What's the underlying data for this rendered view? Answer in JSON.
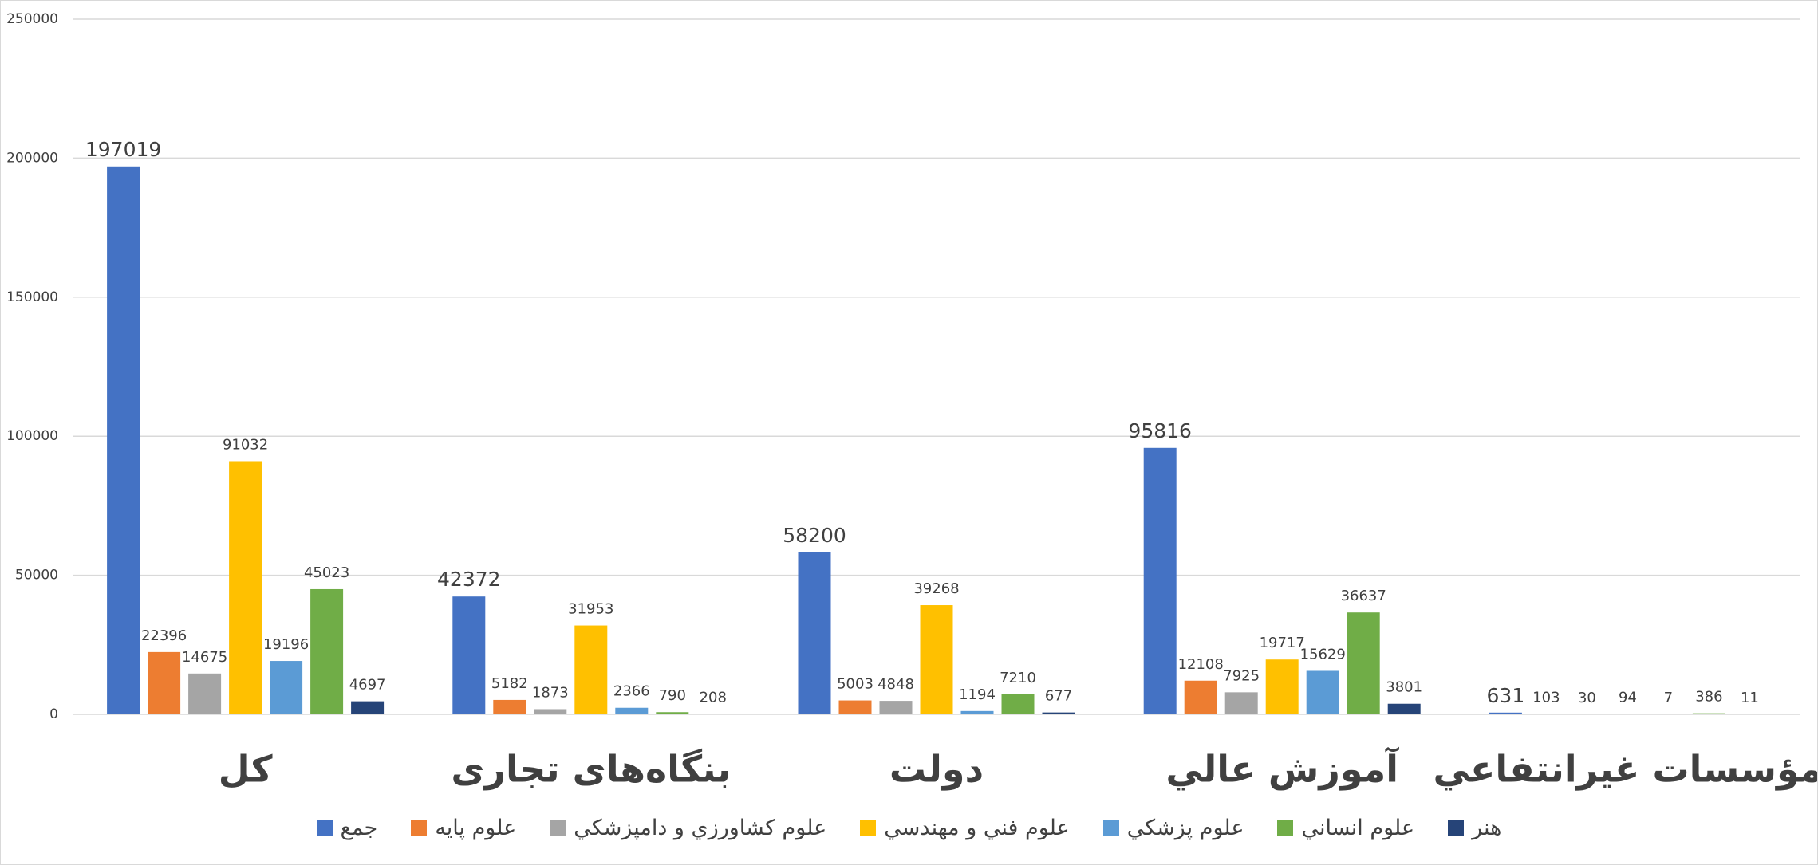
{
  "chart_data": {
    "type": "bar",
    "categories": [
      "كل",
      "بنگاه‌های تجاری",
      "دولت",
      "آموزش عالي",
      "مؤسسات غيرانتفاعي"
    ],
    "series": [
      {
        "name": "جمع",
        "color": "#4472c4",
        "values": [
          197019,
          42372,
          58200,
          95816,
          631
        ]
      },
      {
        "name": "علوم پايه",
        "color": "#ed7d31",
        "values": [
          22396,
          5182,
          5003,
          12108,
          103
        ]
      },
      {
        "name": "علوم كشاورزي و دامپزشكي",
        "color": "#a5a5a5",
        "values": [
          14675,
          1873,
          4848,
          7925,
          30
        ]
      },
      {
        "name": "علوم فني و مهندسي",
        "color": "#ffc000",
        "values": [
          91032,
          31953,
          39268,
          19717,
          94
        ]
      },
      {
        "name": "علوم پزشكي",
        "color": "#5b9bd5",
        "values": [
          19196,
          2366,
          1194,
          15629,
          7
        ]
      },
      {
        "name": "علوم انساني",
        "color": "#70ad47",
        "values": [
          45023,
          790,
          7210,
          36637,
          386
        ]
      },
      {
        "name": "هنر",
        "color": "#264478",
        "values": [
          4697,
          208,
          677,
          3801,
          11
        ]
      }
    ],
    "ylim": [
      0,
      250000
    ],
    "yticks": [
      0,
      50000,
      100000,
      150000,
      200000,
      250000
    ],
    "grid": true,
    "legend": "bottom"
  }
}
